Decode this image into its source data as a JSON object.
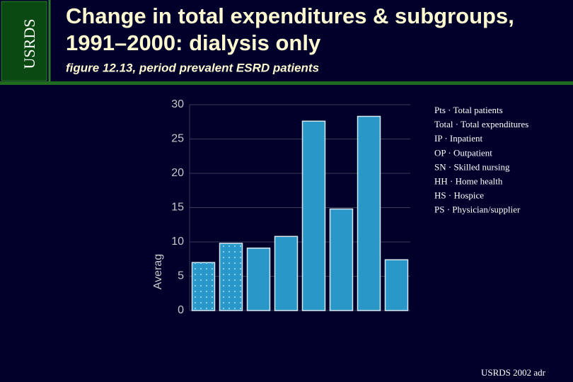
{
  "chart_data": {
    "type": "bar",
    "side_label": "USRDS",
    "title_lines": [
      "Change in total expenditures & subgroups,",
      "1991–2000: dialysis only"
    ],
    "subtitle": "figure 12.13, period prevalent ESRD patients",
    "y_label": "Averag",
    "categories": [
      null,
      null,
      null,
      null,
      null,
      null,
      null,
      null
    ],
    "values": [
      7.0,
      9.8,
      9.1,
      10.8,
      27.6,
      14.8,
      28.3,
      7.4
    ],
    "bar_styles": [
      "dotted",
      "dotted",
      "solid",
      "solid",
      "solid",
      "solid",
      "solid",
      "solid"
    ],
    "color": "#2a97c9",
    "ylim": [
      0,
      30
    ],
    "yticks": [
      0,
      5,
      10,
      15,
      20,
      25,
      30
    ],
    "grid": true,
    "legend_notes": [
      "Pts · Total patients",
      "Total · Total expenditures",
      "IP · Inpatient",
      "OP · Outpatient",
      "SN · Skilled nursing",
      "HH · Home health",
      "HS · Hospice",
      "PS · Physician/supplier"
    ],
    "footer": "USRDS 2002 adr"
  }
}
